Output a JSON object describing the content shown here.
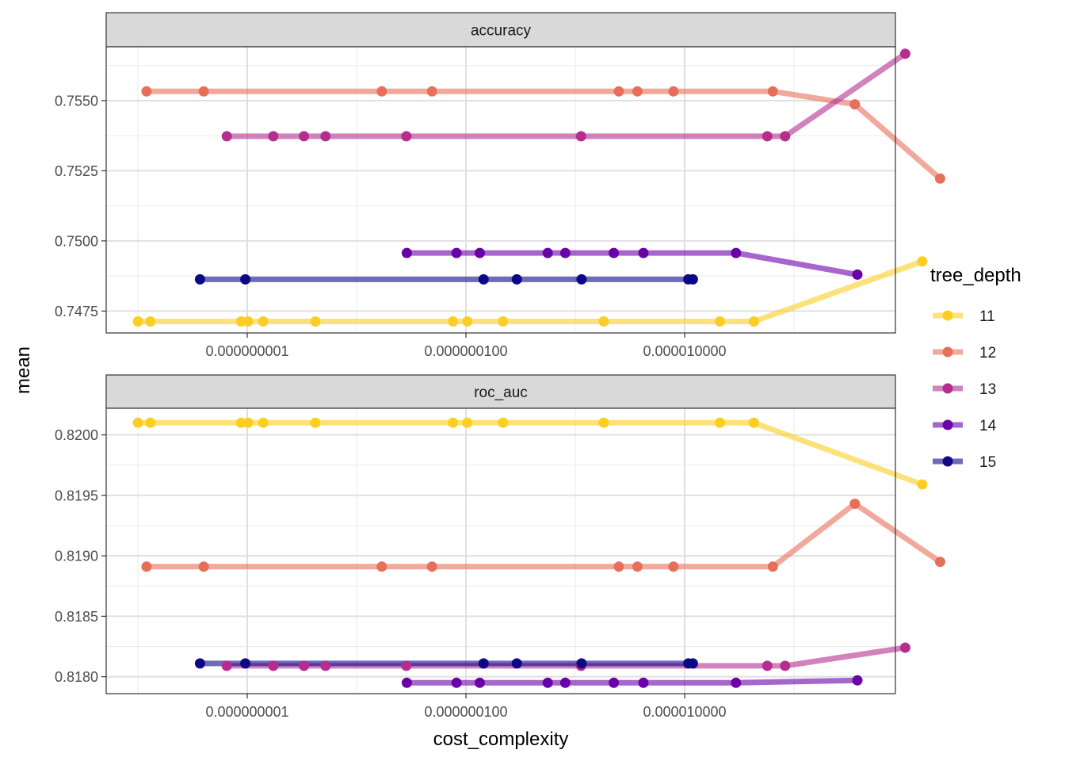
{
  "chart_data": {
    "type": "line",
    "xlabel": "cost_complexity",
    "ylabel": "mean",
    "xscale": "log10",
    "x_tick_labels": [
      "0.000000001",
      "0.000000100",
      "0.000010000"
    ],
    "x_ticks": [
      1e-09,
      1e-07,
      1e-05
    ],
    "legend": {
      "title": "tree_depth",
      "position": "right",
      "entries": [
        {
          "label": "11",
          "color": "#FCCE25"
        },
        {
          "label": "12",
          "color": "#E76F5A"
        },
        {
          "label": "13",
          "color": "#B42E8F"
        },
        {
          "label": "14",
          "color": "#6A00A8"
        },
        {
          "label": "15",
          "color": "#0D0887"
        }
      ]
    },
    "panels": [
      {
        "facet": "accuracy",
        "ylim": [
          0.74672,
          0.75692
        ],
        "y_ticks": [
          0.7475,
          0.75,
          0.7525,
          0.755
        ],
        "y_tick_labels": [
          "0.7475",
          "0.7500",
          "0.7525",
          "0.7550"
        ],
        "series": [
          {
            "name": "11",
            "color": "#FCCE25",
            "x": [
              1e-10,
              1.3e-10,
              8.8e-10,
              1.02e-09,
              1.4e-09,
              4.2e-09,
              7.6e-08,
              1.03e-07,
              2.18e-07,
              1.82e-06,
              2.1e-05,
              4.3e-05,
              0.00149
            ],
            "y": [
              0.74713,
              0.74713,
              0.74713,
              0.74713,
              0.74713,
              0.74713,
              0.74713,
              0.74713,
              0.74713,
              0.74713,
              0.74713,
              0.74713,
              0.74927
            ]
          },
          {
            "name": "12",
            "color": "#E76F5A",
            "x": [
              1.2e-10,
              4e-10,
              1.7e-08,
              4.9e-08,
              2.5e-06,
              3.7e-06,
              7.9e-06,
              6.4e-05,
              0.00036,
              0.00217
            ],
            "y": [
              0.75533,
              0.75533,
              0.75533,
              0.75533,
              0.75533,
              0.75533,
              0.75533,
              0.75533,
              0.75487,
              0.75222
            ]
          },
          {
            "name": "13",
            "color": "#B42E8F",
            "x": [
              6.5e-10,
              1.73e-09,
              3.3e-09,
              5.2e-09,
              2.85e-08,
              1.13e-06,
              5.7e-05,
              8.3e-05,
              0.00104
            ],
            "y": [
              0.75373,
              0.75373,
              0.75373,
              0.75373,
              0.75373,
              0.75373,
              0.75373,
              0.75373,
              0.75667
            ]
          },
          {
            "name": "14",
            "color": "#6A00A8",
            "x": [
              2.88e-08,
              8.2e-08,
              1.34e-07,
              5.6e-07,
              8.1e-07,
              2.25e-06,
              4.2e-06,
              2.95e-05,
              0.00038
            ],
            "y": [
              0.74957,
              0.74957,
              0.74957,
              0.74957,
              0.74957,
              0.74957,
              0.74957,
              0.74957,
              0.7488
            ]
          },
          {
            "name": "15",
            "color": "#0D0887",
            "x": [
              3.7e-10,
              9.6e-10,
              1.45e-07,
              2.92e-07,
              1.14e-06,
              1.08e-05,
              1.19e-05
            ],
            "y": [
              0.74863,
              0.74863,
              0.74863,
              0.74863,
              0.74863,
              0.74863,
              0.74863
            ]
          }
        ]
      },
      {
        "facet": "roc_auc",
        "ylim": [
          0.81786,
          0.82022
        ],
        "y_ticks": [
          0.818,
          0.8185,
          0.819,
          0.8195,
          0.82
        ],
        "y_tick_labels": [
          "0.8180",
          "0.8185",
          "0.8190",
          "0.8195",
          "0.8200"
        ],
        "series": [
          {
            "name": "11",
            "color": "#FCCE25",
            "x": [
              1e-10,
              1.3e-10,
              8.8e-10,
              1.02e-09,
              1.4e-09,
              4.2e-09,
              7.6e-08,
              1.03e-07,
              2.18e-07,
              1.82e-06,
              2.1e-05,
              4.3e-05,
              0.00149
            ],
            "y": [
              0.8201,
              0.8201,
              0.8201,
              0.8201,
              0.8201,
              0.8201,
              0.8201,
              0.8201,
              0.8201,
              0.8201,
              0.8201,
              0.8201,
              0.81959
            ]
          },
          {
            "name": "12",
            "color": "#E76F5A",
            "x": [
              1.2e-10,
              4e-10,
              1.7e-08,
              4.9e-08,
              2.5e-06,
              3.7e-06,
              7.9e-06,
              6.4e-05,
              0.00036,
              0.00217
            ],
            "y": [
              0.81891,
              0.81891,
              0.81891,
              0.81891,
              0.81891,
              0.81891,
              0.81891,
              0.81891,
              0.81943,
              0.81895
            ]
          },
          {
            "name": "13",
            "color": "#B42E8F",
            "x": [
              6.5e-10,
              1.73e-09,
              3.3e-09,
              5.2e-09,
              2.85e-08,
              1.13e-06,
              5.7e-05,
              8.3e-05,
              0.00104
            ],
            "y": [
              0.81809,
              0.81809,
              0.81809,
              0.81809,
              0.81809,
              0.81809,
              0.81809,
              0.81809,
              0.81824
            ]
          },
          {
            "name": "14",
            "color": "#6A00A8",
            "x": [
              2.88e-08,
              8.2e-08,
              1.34e-07,
              5.6e-07,
              8.1e-07,
              2.25e-06,
              4.2e-06,
              2.95e-05,
              0.00038
            ],
            "y": [
              0.81795,
              0.81795,
              0.81795,
              0.81795,
              0.81795,
              0.81795,
              0.81795,
              0.81795,
              0.81797
            ]
          },
          {
            "name": "15",
            "color": "#0D0887",
            "x": [
              3.7e-10,
              9.6e-10,
              1.45e-07,
              2.92e-07,
              1.14e-06,
              1.08e-05,
              1.19e-05
            ],
            "y": [
              0.81811,
              0.81811,
              0.81811,
              0.81811,
              0.81811,
              0.81811,
              0.81811
            ]
          }
        ]
      }
    ]
  }
}
